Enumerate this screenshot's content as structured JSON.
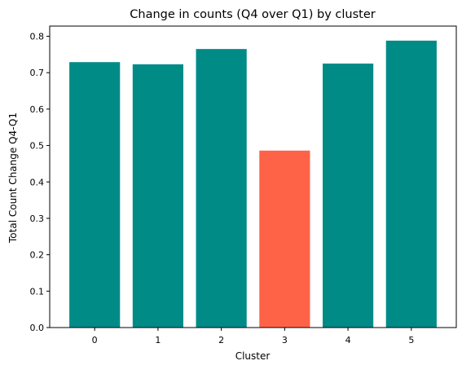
{
  "chart_data": {
    "type": "bar",
    "title": "Change in counts (Q4 over Q1) by cluster",
    "xlabel": "Cluster",
    "ylabel": "Total Count Change Q4-Q1",
    "categories": [
      "0",
      "1",
      "2",
      "3",
      "4",
      "5"
    ],
    "values": [
      0.729,
      0.723,
      0.765,
      0.486,
      0.725,
      0.788
    ],
    "bar_colors": [
      "#008b87",
      "#008b87",
      "#008b87",
      "#ff6347",
      "#008b87",
      "#008b87"
    ],
    "y_ticks": [
      "0.0",
      "0.1",
      "0.2",
      "0.3",
      "0.4",
      "0.5",
      "0.6",
      "0.7",
      "0.8"
    ],
    "ylim": [
      0,
      0.828
    ],
    "grid": false,
    "legend": "none"
  }
}
